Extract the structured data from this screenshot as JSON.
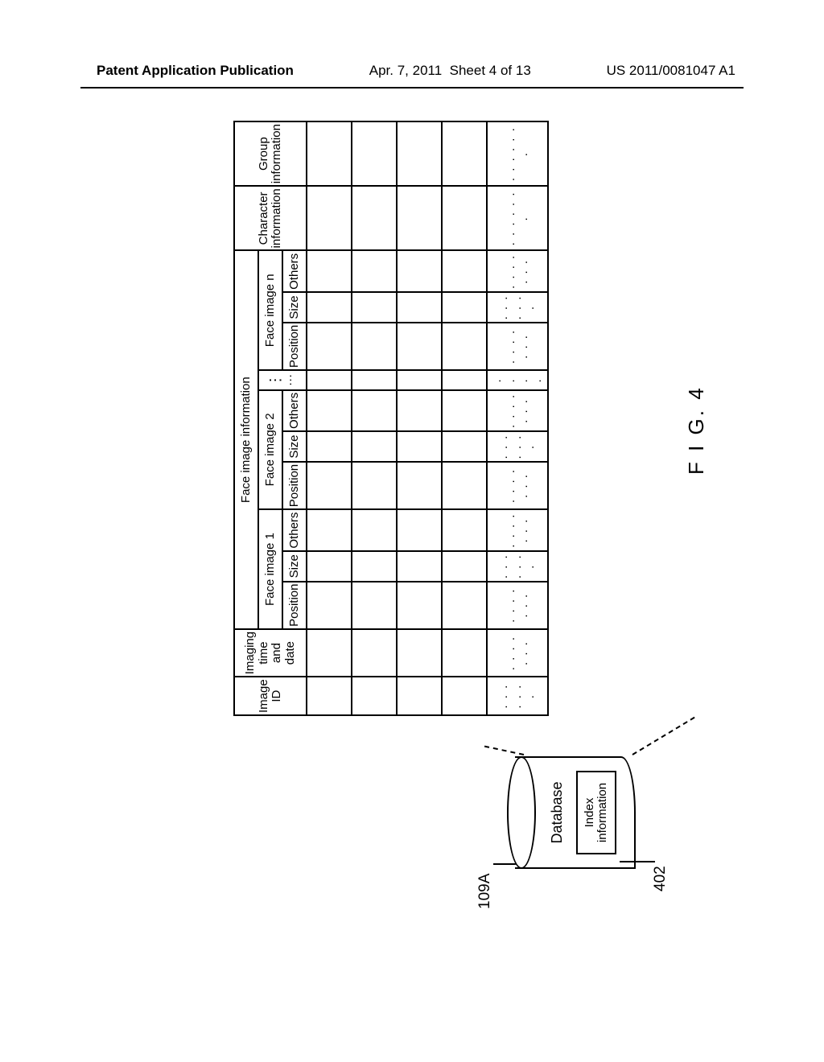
{
  "header": {
    "title": "Patent Application Publication",
    "date": "Apr. 7, 2011",
    "sheet": "Sheet 4 of 13",
    "pubnum": "US 2011/0081047 A1"
  },
  "db": {
    "label": "Database",
    "box": "Index information",
    "ref_top": "109A",
    "ref_bottom": "402"
  },
  "table": {
    "top_headers": {
      "image_id": "Image ID",
      "imaging": "Imaging time and date",
      "face_info": "Face image information",
      "char_info": "Character information",
      "group_info": "Group information"
    },
    "face_groups": [
      "Face image 1",
      "Face image 2",
      "Face image n"
    ],
    "sub_cols": [
      "Position",
      "Size",
      "Others"
    ],
    "ellipsis_h": "···",
    "ellipsis_v": "⋮",
    "dots_row": ". . . . . . ."
  },
  "figure_label": "F I G. 4"
}
